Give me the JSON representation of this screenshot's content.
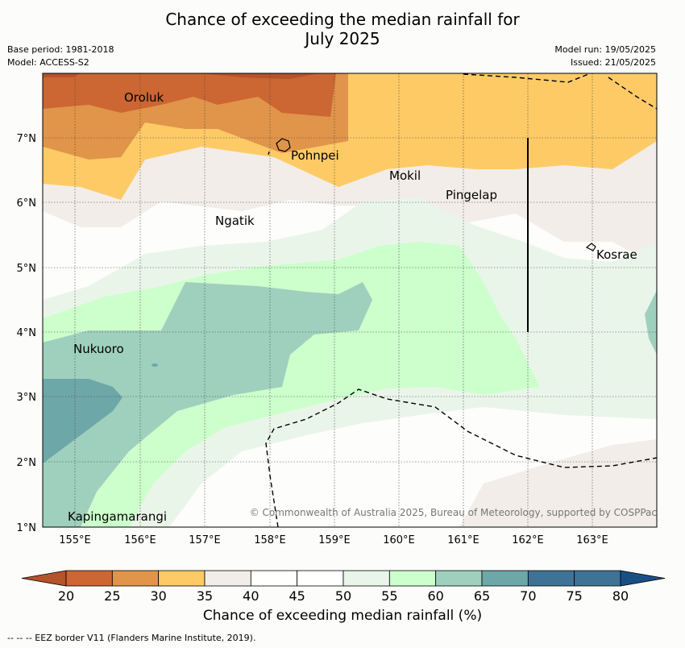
{
  "title_line1": "Chance of exceeding the median rainfall for",
  "title_line2": "July 2025",
  "meta": {
    "base_period": "Base period: 1981-2018",
    "model": "Model: ACCESS-S2",
    "model_run": "Model run: 19/05/2025",
    "issued": "Issued: 21/05/2025"
  },
  "axes": {
    "lon_ticks": [
      "155°E",
      "156°E",
      "157°E",
      "158°E",
      "159°E",
      "160°E",
      "161°E",
      "162°E",
      "163°E"
    ],
    "lat_ticks": [
      "1°N",
      "2°N",
      "3°N",
      "4°N",
      "5°N",
      "6°N",
      "7°N"
    ]
  },
  "places": [
    "Oroluk",
    "Pohnpei",
    "Mokil",
    "Pingelap",
    "Ngatik",
    "Kosrae",
    "Nukuoro",
    "Kapingamarangi"
  ],
  "copyright": "© Commonwealth of Australia 2025, Bureau of Meteorology, supported by COSPPac",
  "colorbar": {
    "ticks": [
      "20",
      "25",
      "30",
      "35",
      "40",
      "45",
      "50",
      "55",
      "60",
      "65",
      "70",
      "75",
      "80"
    ],
    "colors": [
      "#b5532a",
      "#cc6633",
      "#e0954a",
      "#fdca66",
      "#f2ede8",
      "#ffffff",
      "#ffffff",
      "#eaf5e9",
      "#ccffcc",
      "#9fd0bd",
      "#6ea7a8",
      "#3e7396",
      "#1a4f86"
    ],
    "label": "Chance of exceeding median rainfall (%)"
  },
  "footer": "--  --  -- EEZ border V11 (Flanders Marine Institute, 2019)."
}
